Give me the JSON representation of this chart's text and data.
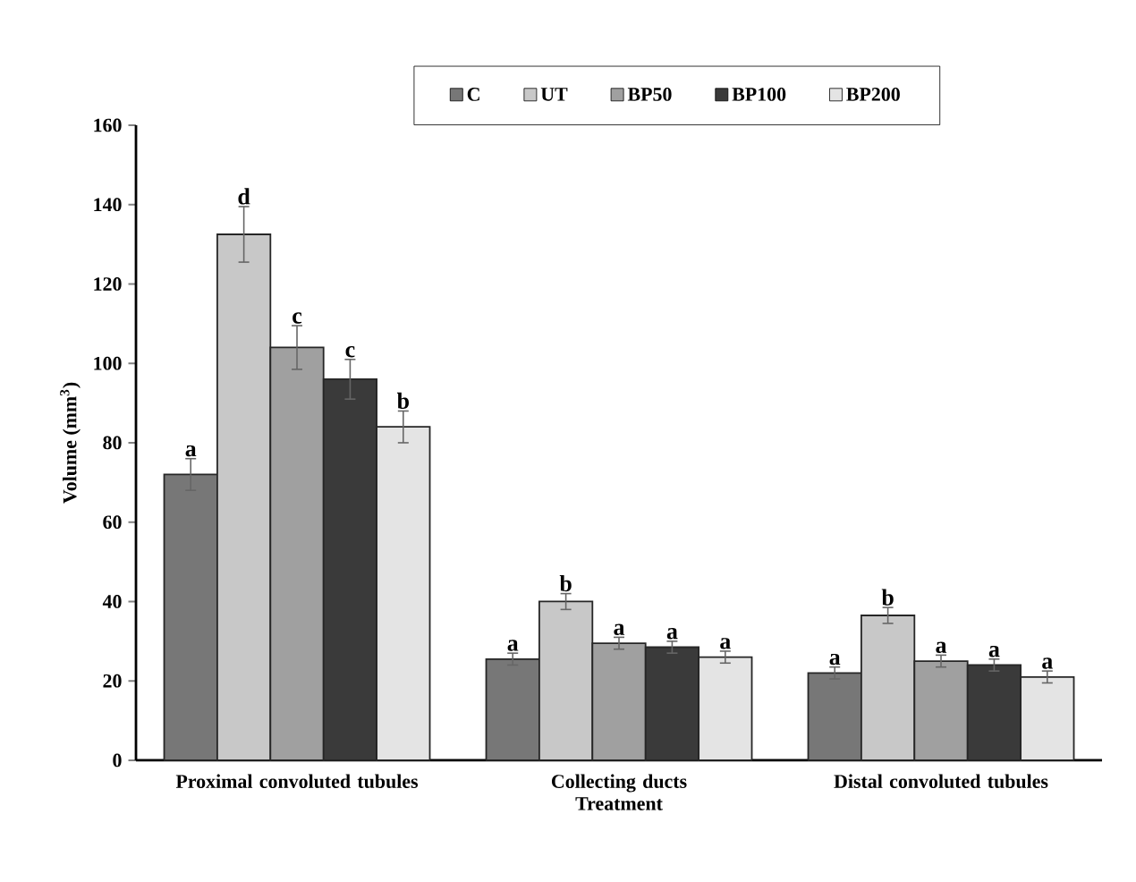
{
  "chart_data": {
    "type": "bar",
    "xlabel": "Treatment",
    "ylabel": "Volume (mm$^{3}$)",
    "categories": [
      "Proximal convoluted tubules",
      "Collecting ducts",
      "Distal convoluted tubules"
    ],
    "series": [
      {
        "name": "C",
        "color": "#777777",
        "values": [
          72,
          25.5,
          22
        ],
        "errors": [
          4,
          1.5,
          1.5
        ],
        "value_labels": [
          "a",
          "a",
          "a"
        ]
      },
      {
        "name": "UT",
        "color": "#c8c8c8",
        "values": [
          132.5,
          40,
          36.5
        ],
        "errors": [
          7,
          2,
          2
        ],
        "value_labels": [
          "d",
          "b",
          "b"
        ]
      },
      {
        "name": "BP50",
        "color": "#a0a0a0",
        "values": [
          104,
          29.5,
          25
        ],
        "errors": [
          5.5,
          1.5,
          1.5
        ],
        "value_labels": [
          "c",
          "a",
          "a"
        ]
      },
      {
        "name": "BP100",
        "color": "#3a3a3a",
        "values": [
          96,
          28.5,
          24
        ],
        "errors": [
          5,
          1.5,
          1.5
        ],
        "value_labels": [
          "c",
          "a",
          "a"
        ]
      },
      {
        "name": "BP200",
        "color": "#e4e4e4",
        "values": [
          84,
          26,
          21
        ],
        "errors": [
          4,
          1.5,
          1.5
        ],
        "value_labels": [
          "b",
          "a",
          "a"
        ]
      }
    ],
    "ylim": [
      0,
      160
    ],
    "yticks": [
      0,
      20,
      40,
      60,
      80,
      100,
      120,
      140,
      160
    ],
    "legend": "top"
  }
}
